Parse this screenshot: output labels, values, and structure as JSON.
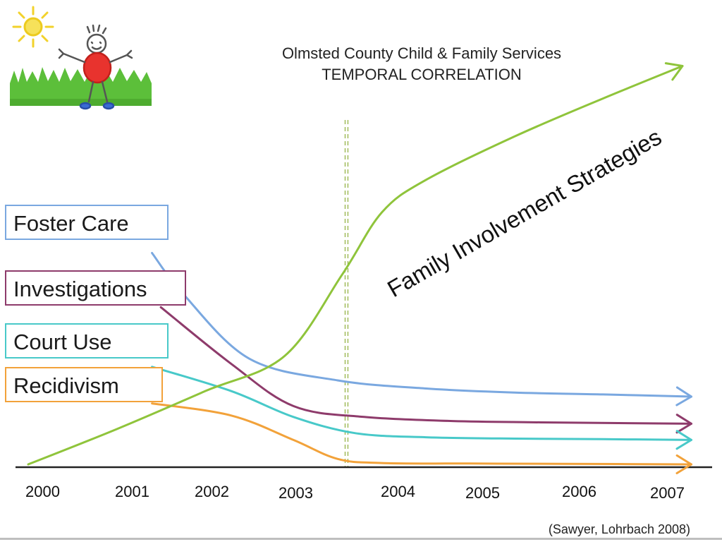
{
  "chart_data": {
    "type": "line",
    "title": "Olmsted County Child & Family Services",
    "subtitle": "TEMPORAL CORRELATION",
    "x": [
      "2000",
      "2001",
      "2002",
      "2003",
      "2004",
      "2005",
      "2006",
      "2007"
    ],
    "annotation": "Family Involvement Strategies",
    "source": "(Sawyer, Lohrbach 2008)",
    "reference_line": 2003.6,
    "series": [
      {
        "name": "Foster Care",
        "color": "#7aa8e0",
        "points": [
          [
            2001.4,
            0.78
          ],
          [
            2001.75,
            0.63
          ],
          [
            2002.5,
            0.39
          ],
          [
            2003.5,
            0.31
          ],
          [
            2004.5,
            0.28
          ],
          [
            2005.5,
            0.265
          ],
          [
            2006.5,
            0.258
          ],
          [
            2007.5,
            0.25
          ]
        ]
      },
      {
        "name": "Investigations",
        "color": "#8e3b6b",
        "points": [
          [
            2001.5,
            0.58
          ],
          [
            2002.3,
            0.37
          ],
          [
            2003.0,
            0.215
          ],
          [
            2003.8,
            0.175
          ],
          [
            2004.8,
            0.16
          ],
          [
            2005.8,
            0.155
          ],
          [
            2007.5,
            0.15
          ]
        ]
      },
      {
        "name": "Court Use",
        "color": "#48c9c9",
        "points": [
          [
            2001.4,
            0.36
          ],
          [
            2002.3,
            0.27
          ],
          [
            2003.0,
            0.175
          ],
          [
            2003.7,
            0.115
          ],
          [
            2004.5,
            0.1
          ],
          [
            2005.5,
            0.095
          ],
          [
            2006.5,
            0.093
          ],
          [
            2007.5,
            0.09
          ]
        ]
      },
      {
        "name": "Recidivism",
        "color": "#f2a23a",
        "points": [
          [
            2001.4,
            0.225
          ],
          [
            2002.3,
            0.18
          ],
          [
            2003.0,
            0.09
          ],
          [
            2003.5,
            0.02
          ],
          [
            2004.0,
            0.005
          ],
          [
            2005.0,
            0.003
          ],
          [
            2006.0,
            0.002
          ],
          [
            2007.5,
            0.0
          ]
        ]
      },
      {
        "name": "Family Involvement Strategies",
        "color": "#8fc43b",
        "points": [
          [
            2000.0,
            0.0
          ],
          [
            2001.0,
            0.13
          ],
          [
            2002.0,
            0.27
          ],
          [
            2002.9,
            0.4
          ],
          [
            2003.55,
            0.7
          ],
          [
            2004.0,
            0.93
          ],
          [
            2004.5,
            1.05
          ],
          [
            2005.5,
            1.21
          ],
          [
            2006.5,
            1.35
          ],
          [
            2007.4,
            1.47
          ]
        ]
      }
    ]
  }
}
